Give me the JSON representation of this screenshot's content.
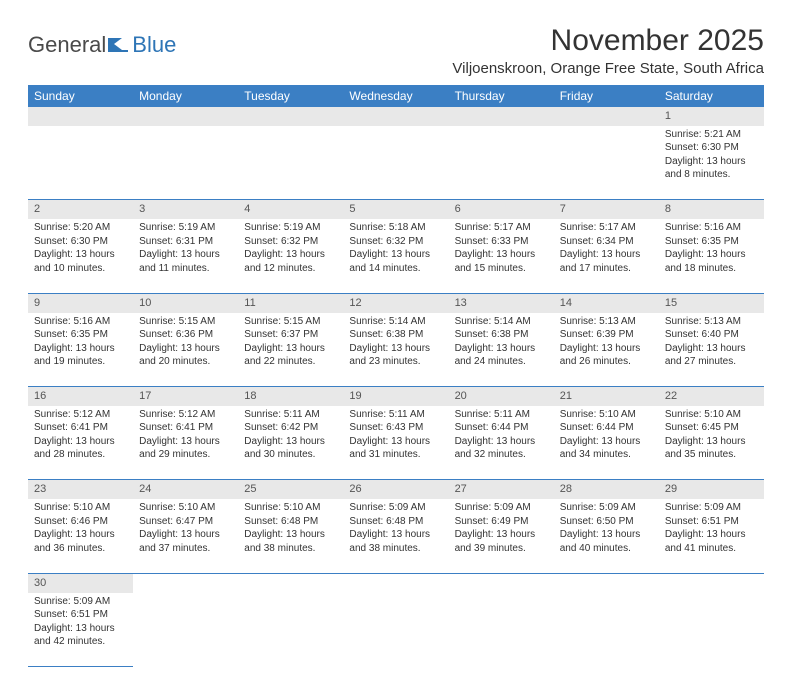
{
  "logo": {
    "text1": "General",
    "text2": "Blue"
  },
  "title": "November 2025",
  "location": "Viljoenskroon, Orange Free State, South Africa",
  "colors": {
    "header_bg": "#3b7fc4",
    "header_text": "#ffffff",
    "daynum_bg": "#e8e8e8",
    "border": "#3b7fc4",
    "logo_gray": "#4a4a4a",
    "logo_blue": "#2e75b6"
  },
  "weekdays": [
    "Sunday",
    "Monday",
    "Tuesday",
    "Wednesday",
    "Thursday",
    "Friday",
    "Saturday"
  ],
  "weeks": [
    [
      null,
      null,
      null,
      null,
      null,
      null,
      {
        "n": "1",
        "sr": "5:21 AM",
        "ss": "6:30 PM",
        "dl": "13 hours and 8 minutes."
      }
    ],
    [
      {
        "n": "2",
        "sr": "5:20 AM",
        "ss": "6:30 PM",
        "dl": "13 hours and 10 minutes."
      },
      {
        "n": "3",
        "sr": "5:19 AM",
        "ss": "6:31 PM",
        "dl": "13 hours and 11 minutes."
      },
      {
        "n": "4",
        "sr": "5:19 AM",
        "ss": "6:32 PM",
        "dl": "13 hours and 12 minutes."
      },
      {
        "n": "5",
        "sr": "5:18 AM",
        "ss": "6:32 PM",
        "dl": "13 hours and 14 minutes."
      },
      {
        "n": "6",
        "sr": "5:17 AM",
        "ss": "6:33 PM",
        "dl": "13 hours and 15 minutes."
      },
      {
        "n": "7",
        "sr": "5:17 AM",
        "ss": "6:34 PM",
        "dl": "13 hours and 17 minutes."
      },
      {
        "n": "8",
        "sr": "5:16 AM",
        "ss": "6:35 PM",
        "dl": "13 hours and 18 minutes."
      }
    ],
    [
      {
        "n": "9",
        "sr": "5:16 AM",
        "ss": "6:35 PM",
        "dl": "13 hours and 19 minutes."
      },
      {
        "n": "10",
        "sr": "5:15 AM",
        "ss": "6:36 PM",
        "dl": "13 hours and 20 minutes."
      },
      {
        "n": "11",
        "sr": "5:15 AM",
        "ss": "6:37 PM",
        "dl": "13 hours and 22 minutes."
      },
      {
        "n": "12",
        "sr": "5:14 AM",
        "ss": "6:38 PM",
        "dl": "13 hours and 23 minutes."
      },
      {
        "n": "13",
        "sr": "5:14 AM",
        "ss": "6:38 PM",
        "dl": "13 hours and 24 minutes."
      },
      {
        "n": "14",
        "sr": "5:13 AM",
        "ss": "6:39 PM",
        "dl": "13 hours and 26 minutes."
      },
      {
        "n": "15",
        "sr": "5:13 AM",
        "ss": "6:40 PM",
        "dl": "13 hours and 27 minutes."
      }
    ],
    [
      {
        "n": "16",
        "sr": "5:12 AM",
        "ss": "6:41 PM",
        "dl": "13 hours and 28 minutes."
      },
      {
        "n": "17",
        "sr": "5:12 AM",
        "ss": "6:41 PM",
        "dl": "13 hours and 29 minutes."
      },
      {
        "n": "18",
        "sr": "5:11 AM",
        "ss": "6:42 PM",
        "dl": "13 hours and 30 minutes."
      },
      {
        "n": "19",
        "sr": "5:11 AM",
        "ss": "6:43 PM",
        "dl": "13 hours and 31 minutes."
      },
      {
        "n": "20",
        "sr": "5:11 AM",
        "ss": "6:44 PM",
        "dl": "13 hours and 32 minutes."
      },
      {
        "n": "21",
        "sr": "5:10 AM",
        "ss": "6:44 PM",
        "dl": "13 hours and 34 minutes."
      },
      {
        "n": "22",
        "sr": "5:10 AM",
        "ss": "6:45 PM",
        "dl": "13 hours and 35 minutes."
      }
    ],
    [
      {
        "n": "23",
        "sr": "5:10 AM",
        "ss": "6:46 PM",
        "dl": "13 hours and 36 minutes."
      },
      {
        "n": "24",
        "sr": "5:10 AM",
        "ss": "6:47 PM",
        "dl": "13 hours and 37 minutes."
      },
      {
        "n": "25",
        "sr": "5:10 AM",
        "ss": "6:48 PM",
        "dl": "13 hours and 38 minutes."
      },
      {
        "n": "26",
        "sr": "5:09 AM",
        "ss": "6:48 PM",
        "dl": "13 hours and 38 minutes."
      },
      {
        "n": "27",
        "sr": "5:09 AM",
        "ss": "6:49 PM",
        "dl": "13 hours and 39 minutes."
      },
      {
        "n": "28",
        "sr": "5:09 AM",
        "ss": "6:50 PM",
        "dl": "13 hours and 40 minutes."
      },
      {
        "n": "29",
        "sr": "5:09 AM",
        "ss": "6:51 PM",
        "dl": "13 hours and 41 minutes."
      }
    ],
    [
      {
        "n": "30",
        "sr": "5:09 AM",
        "ss": "6:51 PM",
        "dl": "13 hours and 42 minutes."
      },
      null,
      null,
      null,
      null,
      null,
      null
    ]
  ],
  "labels": {
    "sunrise": "Sunrise:",
    "sunset": "Sunset:",
    "daylight": "Daylight:"
  }
}
